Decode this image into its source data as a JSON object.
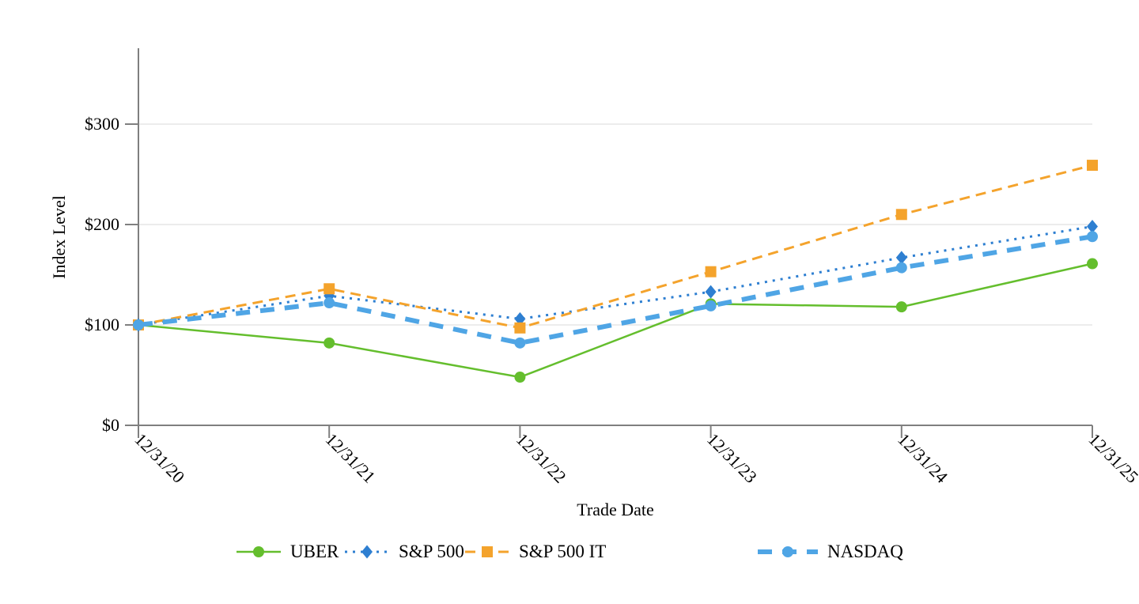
{
  "chart_data": {
    "type": "line",
    "title": "",
    "xlabel": "Trade Date",
    "ylabel": "Index Level",
    "x_categories": [
      "12/31/20",
      "12/31/21",
      "12/31/22",
      "12/31/23",
      "12/31/24",
      "12/31/25"
    ],
    "y_ticks": [
      "$0",
      "$100",
      "$200",
      "$300"
    ],
    "y_tick_values": [
      0,
      100,
      200,
      300
    ],
    "ylim": [
      0,
      375
    ],
    "grid": "horizontal",
    "legend_position": "bottom",
    "axis_color": "#7F7F7F",
    "grid_color": "#E6E6E6",
    "text_color": "#000000",
    "series": [
      {
        "name": "UBER",
        "color": "#64BE2D",
        "line_style": "solid",
        "marker": "circle",
        "values": [
          100,
          82,
          48,
          121,
          118,
          161
        ]
      },
      {
        "name": "S&P 500",
        "color": "#2E7FD1",
        "line_style": "dotted",
        "marker": "diamond",
        "values": [
          100,
          129,
          106,
          133,
          167,
          198
        ]
      },
      {
        "name": "S&P 500 IT",
        "color": "#F4A32C",
        "line_style": "dashed",
        "marker": "square",
        "values": [
          100,
          136,
          97,
          153,
          210,
          259
        ]
      },
      {
        "name": "NASDAQ",
        "color": "#4FA5E5",
        "line_style": "long-dash-thick",
        "marker": "circle",
        "values": [
          100,
          122,
          82,
          119,
          157,
          188
        ]
      }
    ]
  }
}
